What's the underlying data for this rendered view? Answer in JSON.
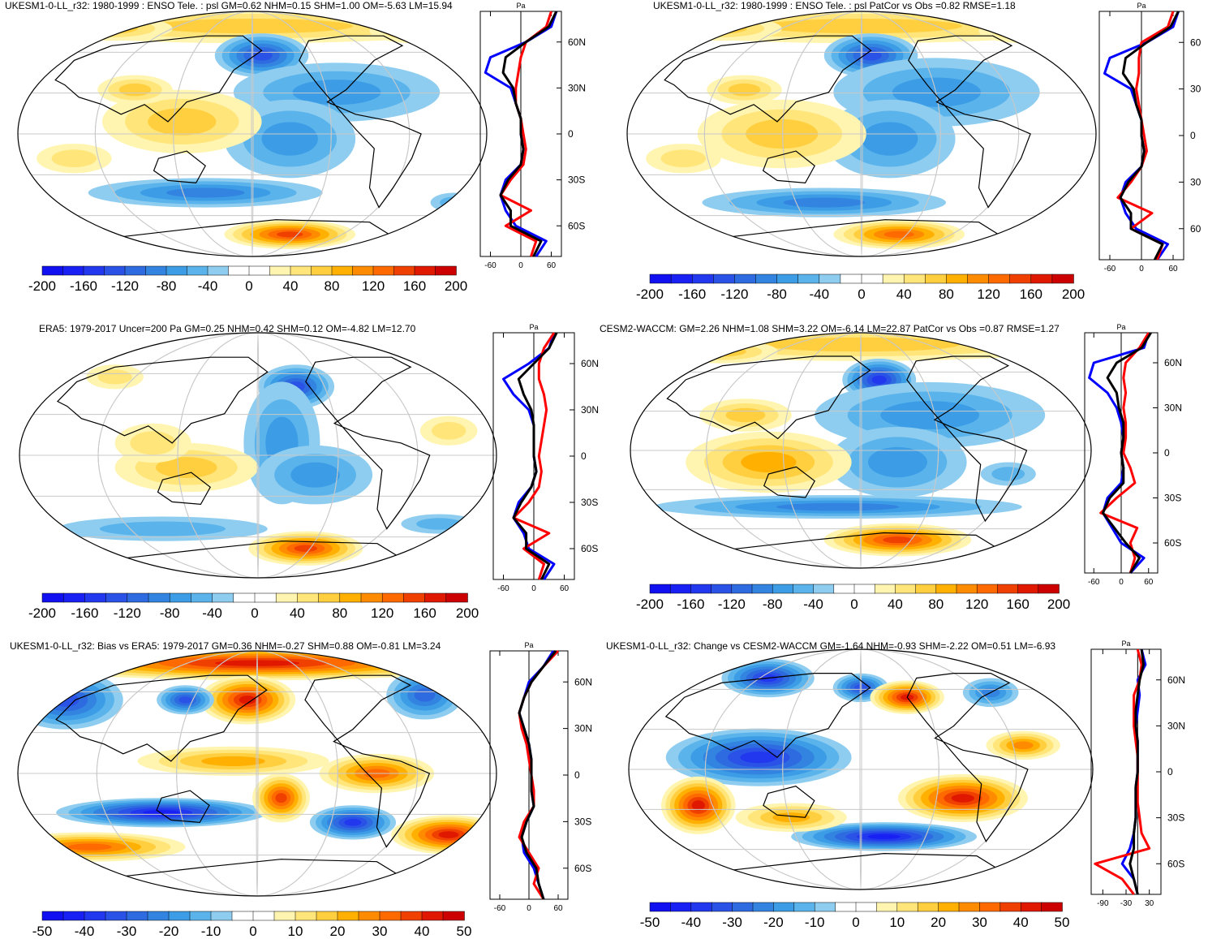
{
  "colors": {
    "pos": [
      "#ffffff",
      "#fff5b0",
      "#ffe57a",
      "#ffcf40",
      "#ffb000",
      "#ff8c00",
      "#ff6a00",
      "#f04000",
      "#e01800",
      "#cc0000"
    ],
    "neg": [
      "#ffffff",
      "#8ecdf0",
      "#5ab4eb",
      "#3c9de6",
      "#3284e0",
      "#2e6ae0",
      "#2a52e6",
      "#2238ee",
      "#1820f4",
      "#1010f0"
    ],
    "obs_line": "#0000ff",
    "model_line": "#ff0000",
    "mme_line": "#000000",
    "coast": "#000000",
    "grid": "#c8c8c8"
  },
  "panels": [
    {
      "id": "p1",
      "title": "UKESM1-0-LL_r32: 1980-1999 : ENSO Tele. : psl GM=0.62 NHM=0.15 SHM=1.00 OM=-5.63 LM=15.94",
      "unit": "Pa",
      "lat_labels": [
        "60N",
        "30N",
        "0",
        "30S",
        "60S"
      ],
      "x_labels": [
        "-60",
        "0",
        "60"
      ],
      "cbar_labels": [
        "-200",
        "-160",
        "-120",
        "-80",
        "-40",
        "0",
        "40",
        "80",
        "120",
        "160",
        "200"
      ],
      "chart_data": {
        "type": "heatmap",
        "field": "psl ENSO teleconnection",
        "stats": {
          "GM": 0.62,
          "NHM": 0.15,
          "SHM": 1.0,
          "OM": -5.63,
          "LM": 15.94
        },
        "colorbar_range": [
          -200,
          200
        ],
        "zonal_mean_xlim": [
          -80,
          80
        ],
        "zonal_mean_xticks": [
          -60,
          0,
          60
        ],
        "lat": [
          80,
          70,
          60,
          50,
          40,
          30,
          20,
          10,
          0,
          -10,
          -20,
          -30,
          -40,
          -50,
          -60,
          -70,
          -80
        ],
        "series": [
          {
            "name": "obs",
            "values": [
              70,
              60,
              10,
              -60,
              -70,
              -20,
              -10,
              0,
              0,
              5,
              0,
              -30,
              -40,
              -30,
              -10,
              50,
              30
            ]
          },
          {
            "name": "model",
            "values": [
              60,
              50,
              10,
              0,
              -5,
              -10,
              -10,
              0,
              5,
              10,
              5,
              -20,
              -40,
              20,
              -30,
              30,
              20
            ]
          },
          {
            "name": "mme",
            "values": [
              70,
              55,
              10,
              -30,
              -35,
              -15,
              -10,
              0,
              0,
              5,
              0,
              -25,
              -40,
              -20,
              -20,
              40,
              25
            ]
          }
        ]
      }
    },
    {
      "id": "p2",
      "title": "UKESM1-0-LL_r32: 1980-1999 : ENSO Tele. : psl PatCor vs Obs =0.82 RMSE=1.18",
      "unit": "Pa",
      "lat_labels": [
        "60",
        "30",
        "0",
        "30",
        "60"
      ],
      "x_labels": [
        "-60",
        "0",
        "60"
      ],
      "cbar_labels": [
        "-200",
        "-160",
        "-120",
        "-80",
        "-40",
        "0",
        "40",
        "80",
        "120",
        "160",
        "200"
      ],
      "chart_data": {
        "type": "heatmap",
        "field": "psl ENSO teleconnection",
        "stats": {
          "PatCor": 0.82,
          "RMSE": 1.18
        },
        "colorbar_range": [
          -200,
          200
        ],
        "zonal_mean_xlim": [
          -80,
          80
        ],
        "zonal_mean_xticks": [
          -60,
          0,
          60
        ],
        "lat": [
          80,
          70,
          60,
          50,
          40,
          30,
          20,
          10,
          0,
          -10,
          -20,
          -30,
          -40,
          -50,
          -60,
          -70,
          -80
        ],
        "series": [
          {
            "name": "obs",
            "values": [
              70,
              60,
              10,
              -60,
              -70,
              -20,
              -10,
              0,
              0,
              5,
              0,
              -30,
              -40,
              -30,
              -10,
              50,
              30
            ]
          },
          {
            "name": "model",
            "values": [
              60,
              50,
              0,
              -5,
              -5,
              -10,
              -5,
              0,
              5,
              10,
              0,
              -20,
              -45,
              20,
              -20,
              40,
              30
            ]
          },
          {
            "name": "mme",
            "values": [
              70,
              55,
              10,
              -30,
              -35,
              -15,
              -10,
              0,
              0,
              5,
              0,
              -25,
              -40,
              -20,
              -20,
              40,
              25
            ]
          }
        ]
      }
    },
    {
      "id": "p3",
      "title": "ERA5: 1979-2017 Uncer=200 Pa GM=0.25 NHM=0.42 SHM=0.12 OM=-4.82 LM=12.70",
      "unit": "Pa",
      "lat_labels": [
        "60N",
        "30N",
        "0",
        "30S",
        "60S"
      ],
      "x_labels": [
        "-60",
        "0",
        "60"
      ],
      "cbar_labels": [
        "-200",
        "-160",
        "-120",
        "-80",
        "-40",
        "0",
        "40",
        "80",
        "120",
        "160",
        "200"
      ],
      "chart_data": {
        "type": "heatmap",
        "field": "psl ENSO teleconnection (obs)",
        "stats": {
          "Uncer": 200,
          "GM": 0.25,
          "NHM": 0.42,
          "SHM": 0.12,
          "OM": -4.82,
          "LM": 12.7
        },
        "colorbar_range": [
          -200,
          200
        ],
        "zonal_mean_xlim": [
          -80,
          80
        ],
        "zonal_mean_xticks": [
          -60,
          0,
          60
        ],
        "lat": [
          80,
          70,
          60,
          50,
          40,
          30,
          20,
          10,
          0,
          -10,
          -20,
          -30,
          -40,
          -50,
          -60,
          -70,
          -80
        ],
        "series": [
          {
            "name": "obs",
            "values": [
              40,
              30,
              -10,
              -60,
              -40,
              -10,
              0,
              0,
              0,
              5,
              -5,
              -30,
              -40,
              -20,
              -10,
              40,
              20
            ]
          },
          {
            "name": "model",
            "values": [
              40,
              20,
              10,
              10,
              20,
              25,
              20,
              15,
              10,
              15,
              10,
              -10,
              -40,
              30,
              -20,
              20,
              10
            ]
          },
          {
            "name": "mme",
            "values": [
              45,
              30,
              0,
              -30,
              -20,
              -5,
              0,
              0,
              0,
              5,
              -5,
              -25,
              -40,
              -15,
              -15,
              30,
              15
            ]
          }
        ]
      }
    },
    {
      "id": "p4",
      "title": "CESM2-WACCM: GM=2.26 NHM=1.08 SHM=3.22 OM=-6.14 LM=22.87 PatCor vs Obs =0.87 RMSE=1.27",
      "unit": "Pa",
      "lat_labels": [
        "60N",
        "30N",
        "0",
        "30S",
        "60S"
      ],
      "x_labels": [
        "-60",
        "0",
        "60"
      ],
      "cbar_labels": [
        "-200",
        "-160",
        "-120",
        "-80",
        "-40",
        "0",
        "40",
        "80",
        "120",
        "160",
        "200"
      ],
      "chart_data": {
        "type": "heatmap",
        "field": "psl ENSO teleconnection",
        "stats": {
          "GM": 2.26,
          "NHM": 1.08,
          "SHM": 3.22,
          "OM": -6.14,
          "LM": 22.87,
          "PatCor": 0.87,
          "RMSE": 1.27
        },
        "colorbar_range": [
          -200,
          200
        ],
        "zonal_mean_xlim": [
          -80,
          80
        ],
        "zonal_mean_xticks": [
          -60,
          0,
          60
        ],
        "lat": [
          80,
          70,
          60,
          50,
          40,
          30,
          20,
          10,
          0,
          -10,
          -20,
          -30,
          -40,
          -50,
          -60,
          -70,
          -80
        ],
        "series": [
          {
            "name": "obs",
            "values": [
              60,
              50,
              -60,
              -70,
              -30,
              -10,
              0,
              5,
              0,
              5,
              0,
              -30,
              -40,
              -20,
              0,
              50,
              20
            ]
          },
          {
            "name": "model",
            "values": [
              60,
              40,
              10,
              5,
              10,
              5,
              10,
              10,
              5,
              20,
              30,
              -10,
              -45,
              35,
              20,
              30,
              20
            ]
          },
          {
            "name": "mme",
            "values": [
              65,
              45,
              -10,
              -30,
              -10,
              -5,
              5,
              5,
              0,
              5,
              5,
              -25,
              -40,
              -15,
              10,
              40,
              20
            ]
          }
        ]
      }
    },
    {
      "id": "p5",
      "title": "UKESM1-0-LL_r32: Bias vs ERA5: 1979-2017 GM=0.36 NHM=-0.27 SHM=0.88 OM=-0.81 LM=3.24",
      "unit": "Pa",
      "lat_labels": [
        "60N",
        "30N",
        "0",
        "30S",
        "60S"
      ],
      "x_labels": [
        "-60",
        "0",
        "60"
      ],
      "cbar_labels": [
        "-50",
        "-40",
        "-30",
        "-20",
        "-10",
        "0",
        "10",
        "20",
        "30",
        "40",
        "50"
      ],
      "chart_data": {
        "type": "heatmap",
        "field": "psl bias vs ERA5",
        "stats": {
          "GM": 0.36,
          "NHM": -0.27,
          "SHM": 0.88,
          "OM": -0.81,
          "LM": 3.24
        },
        "colorbar_range": [
          -50,
          50
        ],
        "zonal_mean_xlim": [
          -80,
          80
        ],
        "zonal_mean_xticks": [
          -60,
          0,
          60
        ],
        "lat": [
          80,
          70,
          60,
          50,
          40,
          30,
          20,
          10,
          0,
          -10,
          -20,
          -30,
          -40,
          -50,
          -60,
          -70,
          -80
        ],
        "series": [
          {
            "name": "obs",
            "values": [
              50,
              30,
              0,
              -10,
              -20,
              -10,
              0,
              5,
              5,
              5,
              10,
              -5,
              -15,
              -10,
              10,
              20,
              30
            ]
          },
          {
            "name": "model",
            "values": [
              60,
              30,
              5,
              -10,
              -20,
              -15,
              -5,
              0,
              5,
              10,
              10,
              -10,
              -20,
              0,
              20,
              10,
              30
            ]
          },
          {
            "name": "mme",
            "values": [
              55,
              30,
              5,
              -10,
              -20,
              -10,
              0,
              5,
              5,
              5,
              10,
              -5,
              -15,
              -5,
              15,
              20,
              30
            ]
          }
        ]
      }
    },
    {
      "id": "p6",
      "title": "UKESM1-0-LL_r32: Change vs CESM2-WACCM GM=-1.64 NHM=-0.93 SHM=-2.22 OM=0.51 LM=-6.93",
      "unit": "Pa",
      "lat_labels": [
        "60N",
        "30N",
        "0",
        "30S",
        "60S"
      ],
      "x_labels": [
        "-90",
        "-30",
        "30"
      ],
      "cbar_labels": [
        "-50",
        "-40",
        "-30",
        "-20",
        "-10",
        "0",
        "10",
        "20",
        "30",
        "40",
        "50"
      ],
      "chart_data": {
        "type": "heatmap",
        "field": "psl change vs CESM2-WACCM",
        "stats": {
          "GM": -1.64,
          "NHM": -0.93,
          "SHM": -2.22,
          "OM": 0.51,
          "LM": -6.93
        },
        "colorbar_range": [
          -50,
          50
        ],
        "zonal_mean_xlim": [
          -120,
          60
        ],
        "zonal_mean_xticks": [
          -90,
          -30,
          30
        ],
        "lat": [
          80,
          70,
          60,
          50,
          40,
          30,
          20,
          10,
          0,
          -10,
          -20,
          -30,
          -40,
          -50,
          -60,
          -70,
          -80
        ],
        "series": [
          {
            "name": "obs",
            "values": [
              10,
              20,
              0,
              5,
              0,
              -5,
              0,
              0,
              0,
              -5,
              -5,
              -5,
              -10,
              -20,
              -40,
              -10,
              0
            ]
          },
          {
            "name": "model",
            "values": [
              0,
              10,
              5,
              -10,
              -10,
              -10,
              -5,
              0,
              0,
              0,
              0,
              5,
              10,
              30,
              -110,
              -40,
              -10
            ]
          },
          {
            "name": "mme",
            "values": [
              10,
              15,
              5,
              0,
              -5,
              -5,
              0,
              0,
              0,
              -5,
              -5,
              -5,
              -10,
              -10,
              -20,
              -10,
              0
            ]
          }
        ]
      }
    }
  ]
}
